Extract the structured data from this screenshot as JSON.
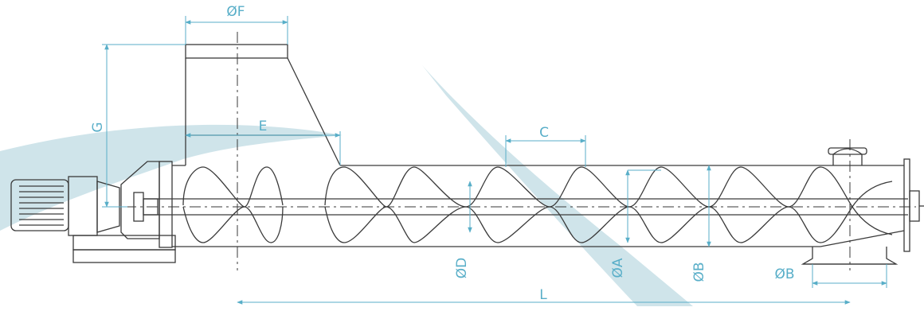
{
  "diagram": {
    "labels": {
      "flange_diameter": "ØF",
      "height": "G",
      "inlet_offset": "E",
      "pitch": "C",
      "shaft_diameter": "ØD",
      "screw_diameter": "ØA",
      "trough_diameter": "ØB",
      "outlet_diameter": "ØB",
      "length": "L"
    },
    "colors": {
      "line": "#3a3a3a",
      "dimension": "#58aec8",
      "watermark": "#cfe4ea"
    }
  }
}
